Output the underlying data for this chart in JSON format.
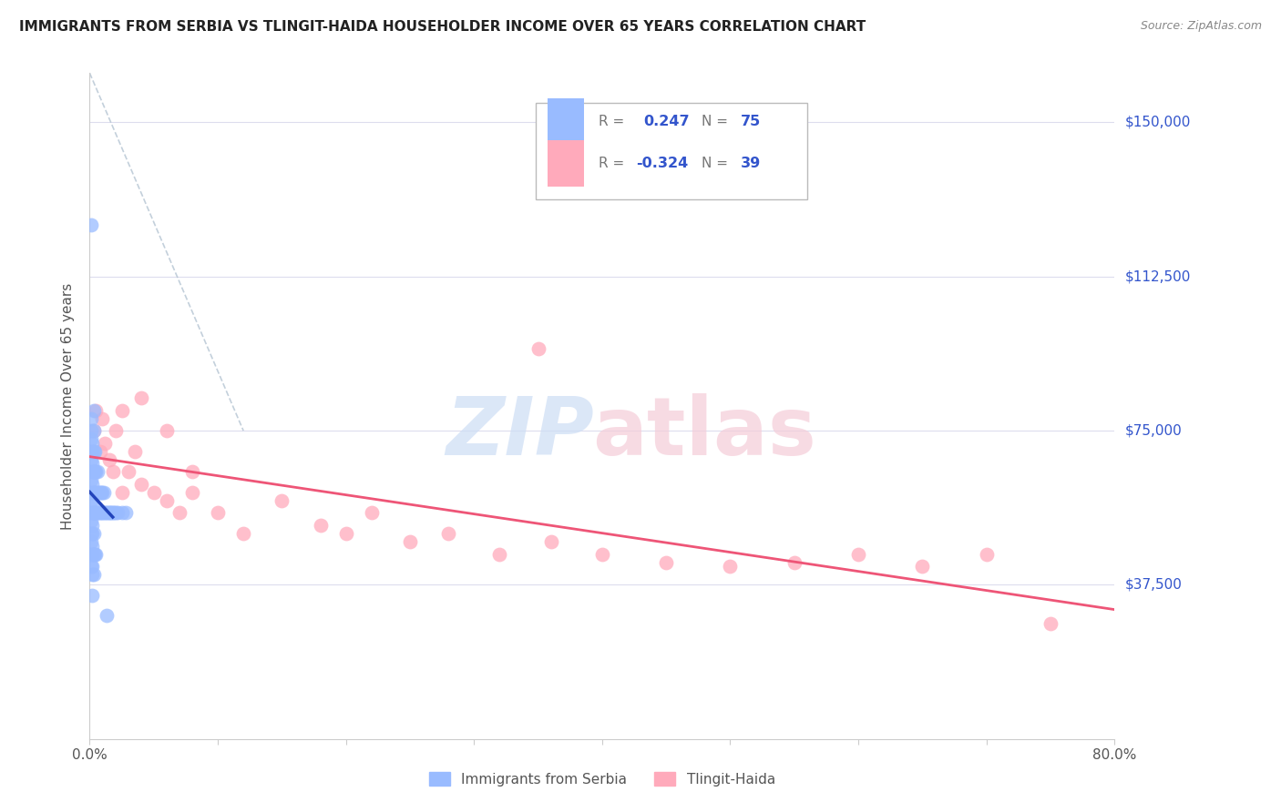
{
  "title": "IMMIGRANTS FROM SERBIA VS TLINGIT-HAIDA HOUSEHOLDER INCOME OVER 65 YEARS CORRELATION CHART",
  "source": "Source: ZipAtlas.com",
  "ylabel": "Householder Income Over 65 years",
  "y_tick_vals": [
    37500,
    75000,
    112500,
    150000
  ],
  "y_tick_labels": [
    "$37,500",
    "$75,000",
    "$112,500",
    "$150,000"
  ],
  "xlim": [
    0.0,
    0.8
  ],
  "ylim": [
    0,
    162000
  ],
  "legend1_label": "Immigrants from Serbia",
  "legend2_label": "Tlingit-Haida",
  "r1": 0.247,
  "n1": 75,
  "r2": -0.324,
  "n2": 39,
  "blue_color": "#99bbff",
  "pink_color": "#ffaabb",
  "blue_line_color": "#2244bb",
  "pink_line_color": "#ee5577",
  "serbia_x": [
    0.001,
    0.001,
    0.001,
    0.001,
    0.001,
    0.001,
    0.001,
    0.001,
    0.001,
    0.001,
    0.001,
    0.001,
    0.001,
    0.001,
    0.001,
    0.002,
    0.002,
    0.002,
    0.002,
    0.002,
    0.002,
    0.002,
    0.002,
    0.002,
    0.002,
    0.002,
    0.002,
    0.002,
    0.002,
    0.002,
    0.003,
    0.003,
    0.003,
    0.003,
    0.003,
    0.003,
    0.003,
    0.003,
    0.003,
    0.004,
    0.004,
    0.004,
    0.004,
    0.004,
    0.005,
    0.005,
    0.005,
    0.005,
    0.006,
    0.006,
    0.006,
    0.007,
    0.007,
    0.008,
    0.008,
    0.009,
    0.009,
    0.01,
    0.01,
    0.011,
    0.011,
    0.012,
    0.013,
    0.014,
    0.015,
    0.016,
    0.017,
    0.018,
    0.019,
    0.02,
    0.022,
    0.025,
    0.028,
    0.001,
    0.013
  ],
  "serbia_y": [
    55000,
    60000,
    65000,
    70000,
    75000,
    45000,
    50000,
    42000,
    48000,
    53000,
    58000,
    63000,
    68000,
    73000,
    78000,
    55000,
    60000,
    65000,
    70000,
    45000,
    50000,
    40000,
    35000,
    42000,
    47000,
    52000,
    57000,
    62000,
    67000,
    72000,
    55000,
    60000,
    65000,
    45000,
    50000,
    40000,
    70000,
    75000,
    80000,
    55000,
    60000,
    65000,
    45000,
    70000,
    55000,
    60000,
    65000,
    45000,
    55000,
    60000,
    65000,
    55000,
    60000,
    55000,
    60000,
    55000,
    60000,
    55000,
    60000,
    55000,
    60000,
    55000,
    55000,
    55000,
    55000,
    55000,
    55000,
    55000,
    55000,
    55000,
    55000,
    55000,
    55000,
    125000,
    30000
  ],
  "tlingit_x": [
    0.003,
    0.005,
    0.008,
    0.01,
    0.012,
    0.015,
    0.018,
    0.02,
    0.025,
    0.03,
    0.035,
    0.04,
    0.05,
    0.06,
    0.07,
    0.08,
    0.1,
    0.12,
    0.15,
    0.18,
    0.2,
    0.22,
    0.25,
    0.28,
    0.32,
    0.36,
    0.4,
    0.45,
    0.5,
    0.55,
    0.6,
    0.65,
    0.7,
    0.75,
    0.04,
    0.025,
    0.06,
    0.08,
    0.35
  ],
  "tlingit_y": [
    75000,
    80000,
    70000,
    78000,
    72000,
    68000,
    65000,
    75000,
    60000,
    65000,
    70000,
    62000,
    60000,
    58000,
    55000,
    60000,
    55000,
    50000,
    58000,
    52000,
    50000,
    55000,
    48000,
    50000,
    45000,
    48000,
    45000,
    43000,
    42000,
    43000,
    45000,
    42000,
    45000,
    28000,
    83000,
    80000,
    75000,
    65000,
    95000
  ]
}
